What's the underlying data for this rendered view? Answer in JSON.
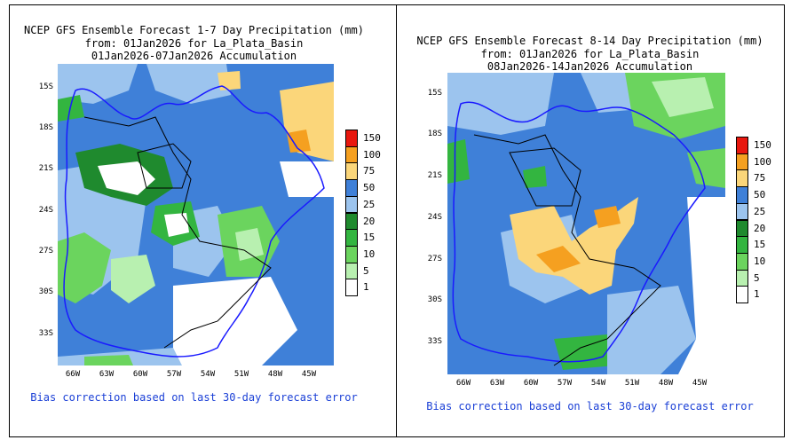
{
  "panels": [
    {
      "title_line1": "NCEP GFS Ensemble Forecast 1-7 Day Precipitation (mm)",
      "title_line2": "from: 01Jan2026  for La_Plata_Basin",
      "title_line3": "01Jan2026-07Jan2026 Accumulation",
      "note": "Bias correction based on last 30-day forecast error"
    },
    {
      "title_line1": "NCEP GFS Ensemble Forecast 8-14 Day Precipitation (mm)",
      "title_line2": "from: 01Jan2026  for La_Plata_Basin",
      "title_line3": "08Jan2026-14Jan2026 Accumulation",
      "note": "Bias correction based on last 30-day forecast error"
    }
  ],
  "lat_labels": [
    "15S",
    "18S",
    "21S",
    "24S",
    "27S",
    "30S",
    "33S"
  ],
  "lon_labels": [
    "66W",
    "63W",
    "60W",
    "57W",
    "54W",
    "51W",
    "48W",
    "45W"
  ],
  "legend": {
    "labels": [
      "150",
      "100",
      "75",
      "50",
      "25",
      "20",
      "15",
      "10",
      "5",
      "1"
    ],
    "colors": [
      "#e8170e",
      "#f5a020",
      "#fbd67a",
      "#3f80d8",
      "#9cc4ee",
      "#1f8a2e",
      "#33b540",
      "#6bd45e",
      "#b8f0b0",
      "#ffffff"
    ]
  }
}
